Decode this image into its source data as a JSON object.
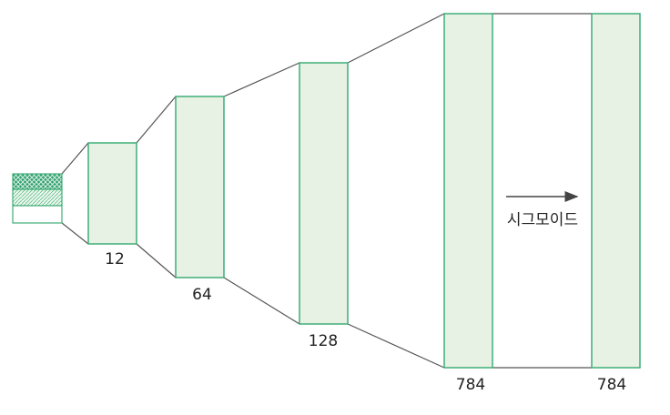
{
  "nodes": [
    {
      "label": "12"
    },
    {
      "label": "64"
    },
    {
      "label": "128"
    },
    {
      "label": "784"
    },
    {
      "label": "784"
    }
  ],
  "activation": {
    "label": "시그모이드"
  }
}
